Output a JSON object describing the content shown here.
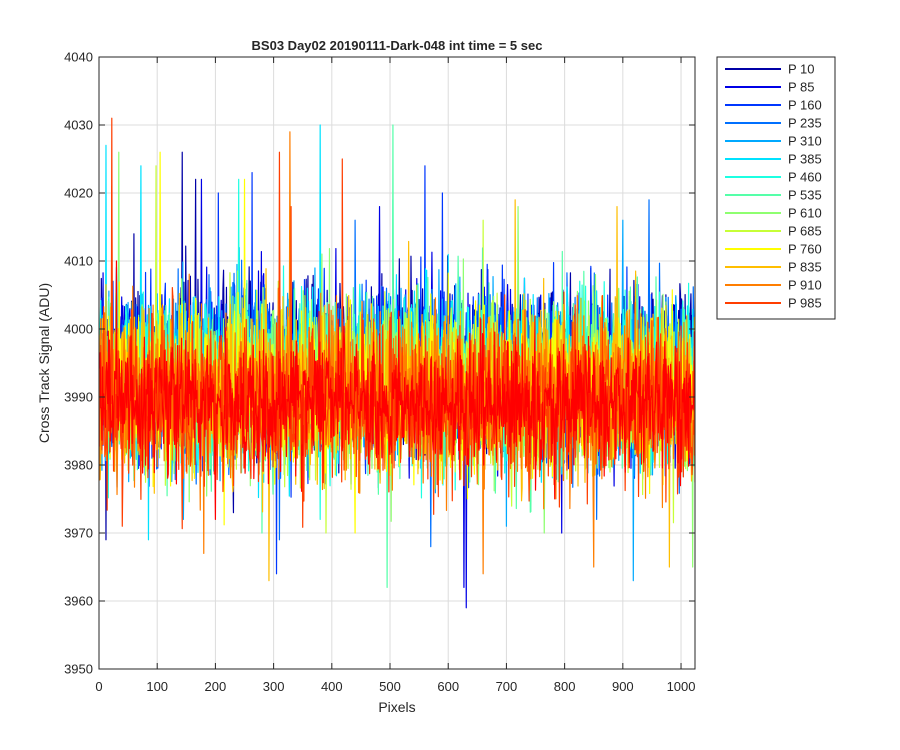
{
  "chart_data": {
    "type": "line",
    "title": "BS03 Day02 20190111-Dark-048 int time = 5 sec",
    "xlabel": "Pixels",
    "ylabel": "Cross Track Signal (ADU)",
    "xlim": [
      0,
      1024
    ],
    "ylim": [
      3950,
      4040
    ],
    "x_ticks": [
      0,
      100,
      200,
      300,
      400,
      500,
      600,
      700,
      800,
      900,
      1000
    ],
    "y_ticks": [
      3950,
      3960,
      3970,
      3980,
      3990,
      4000,
      4010,
      4020,
      4030,
      4040
    ],
    "grid": true,
    "legend_position": "outside-top-right",
    "x": {
      "start": 1,
      "end": 1024,
      "step": 1
    },
    "series": [
      {
        "name": "P 10",
        "color": "#0000a6",
        "mean": 3995,
        "noise_sd": 6.0,
        "extremes": [
          [
            60,
            4014
          ],
          [
            143,
            4026
          ],
          [
            166,
            4022
          ],
          [
            12,
            3969
          ],
          [
            231,
            3973
          ]
        ]
      },
      {
        "name": "P 85",
        "color": "#0000e6",
        "mean": 3994,
        "noise_sd": 6.0,
        "extremes": [
          [
            176,
            4022
          ],
          [
            482,
            4018
          ],
          [
            627,
            3962
          ],
          [
            631,
            3959
          ],
          [
            795,
            3970
          ]
        ]
      },
      {
        "name": "P 160",
        "color": "#0037ff",
        "mean": 3993,
        "noise_sd": 6.0,
        "extremes": [
          [
            205,
            4020
          ],
          [
            263,
            4023
          ],
          [
            560,
            4024
          ],
          [
            590,
            4020
          ],
          [
            305,
            3964
          ]
        ]
      },
      {
        "name": "P 235",
        "color": "#0070ff",
        "mean": 3993,
        "noise_sd": 6.0,
        "extremes": [
          [
            440,
            4016
          ],
          [
            945,
            4019
          ],
          [
            570,
            3968
          ],
          [
            310,
            3969
          ],
          [
            855,
            3972
          ]
        ]
      },
      {
        "name": "P 310",
        "color": "#00a9ff",
        "mean": 3993,
        "noise_sd": 6.0,
        "extremes": [
          [
            900,
            4016
          ],
          [
            918,
            3963
          ],
          [
            145,
            3972
          ],
          [
            700,
            3971
          ]
        ]
      },
      {
        "name": "P 385",
        "color": "#00e2ff",
        "mean": 3992,
        "noise_sd": 6.0,
        "extremes": [
          [
            12,
            4027
          ],
          [
            380,
            4030
          ],
          [
            72,
            4024
          ],
          [
            85,
            3969
          ]
        ]
      },
      {
        "name": "P 460",
        "color": "#1cffe2",
        "mean": 3992,
        "noise_sd": 6.0,
        "extremes": [
          [
            240,
            4022
          ],
          [
            505,
            4019
          ],
          [
            380,
            3972
          ]
        ]
      },
      {
        "name": "P 535",
        "color": "#55ffa9",
        "mean": 3992,
        "noise_sd": 6.0,
        "extremes": [
          [
            505,
            4030
          ],
          [
            495,
            3962
          ],
          [
            280,
            3970
          ]
        ]
      },
      {
        "name": "P 610",
        "color": "#8eff70",
        "mean": 3992,
        "noise_sd": 6.0,
        "extremes": [
          [
            34,
            4026
          ],
          [
            720,
            4018
          ],
          [
            765,
            3970
          ],
          [
            1020,
            3965
          ]
        ]
      },
      {
        "name": "P 685",
        "color": "#c7ff37",
        "mean": 3991,
        "noise_sd": 6.0,
        "extremes": [
          [
            98,
            4024
          ],
          [
            660,
            4016
          ],
          [
            390,
            3970
          ]
        ]
      },
      {
        "name": "P 760",
        "color": "#ffff00",
        "mean": 3991,
        "noise_sd": 6.0,
        "extremes": [
          [
            105,
            4026
          ],
          [
            250,
            4022
          ],
          [
            440,
            3970
          ]
        ]
      },
      {
        "name": "P 835",
        "color": "#ffbe00",
        "mean": 3991,
        "noise_sd": 6.0,
        "extremes": [
          [
            715,
            4019
          ],
          [
            890,
            4018
          ],
          [
            292,
            3963
          ],
          [
            980,
            3965
          ]
        ]
      },
      {
        "name": "P 910",
        "color": "#ff7e00",
        "mean": 3990,
        "noise_sd": 6.0,
        "extremes": [
          [
            328,
            4029
          ],
          [
            22,
            4021
          ],
          [
            180,
            3967
          ],
          [
            850,
            3965
          ],
          [
            660,
            3964
          ]
        ]
      },
      {
        "name": "P 985",
        "color": "#ff3e00",
        "mean": 3989,
        "noise_sd": 6.0,
        "extremes": [
          [
            22,
            4031
          ],
          [
            310,
            4026
          ],
          [
            418,
            4025
          ],
          [
            330,
            4018
          ],
          [
            40,
            3971
          ]
        ]
      },
      {
        "name": "",
        "color": "#ff0000",
        "mean": 3989,
        "noise_sd": 5.0,
        "extremes": [
          [
            30,
            4010
          ],
          [
            200,
            3972
          ]
        ]
      }
    ]
  }
}
